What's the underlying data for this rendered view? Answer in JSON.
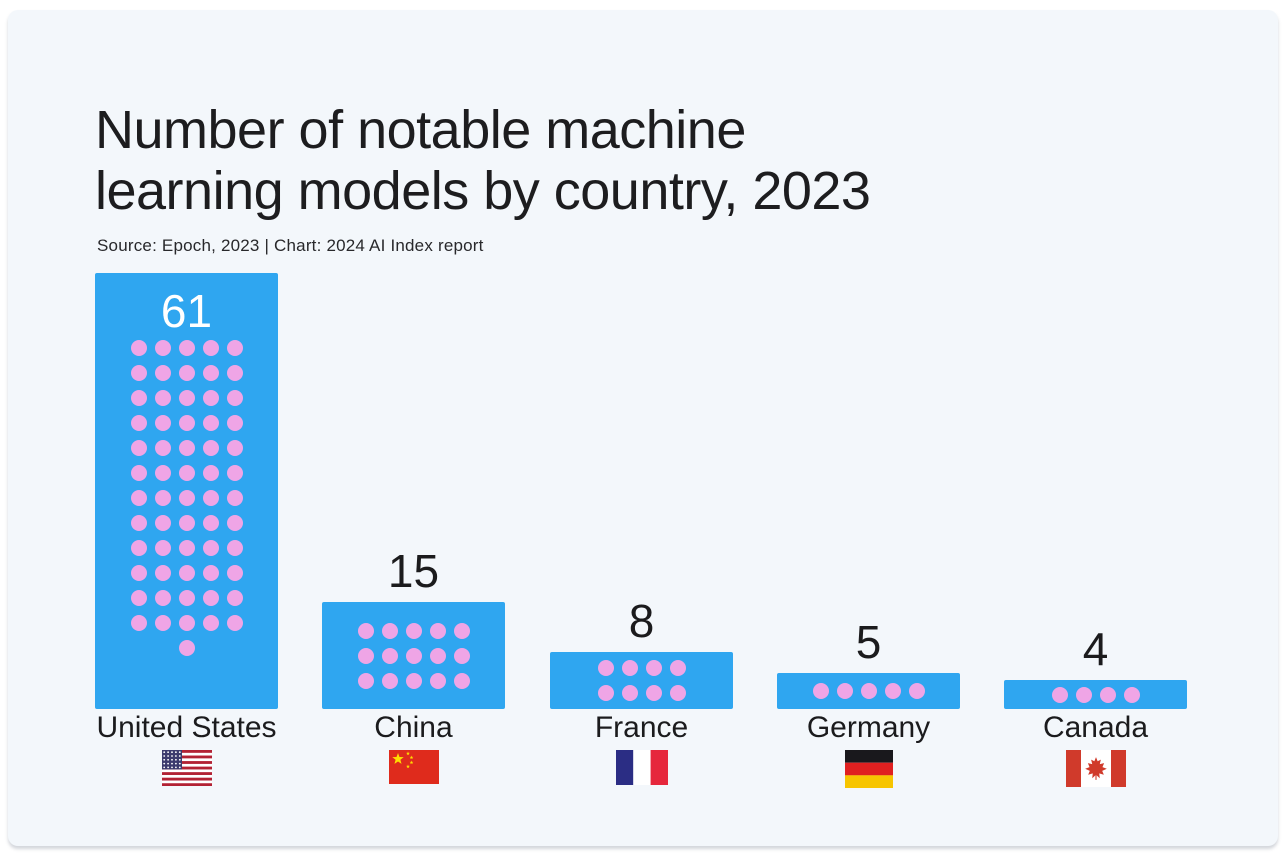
{
  "page": {
    "background": "#ffffff",
    "canvas_background": "#f3f7fb"
  },
  "header": {
    "title_line1": "Number of notable machine",
    "title_line2": "learning models by country, 2023",
    "source": "Source: Epoch, 2023 | Chart: 2024 AI Index report"
  },
  "chart_data": {
    "type": "bar",
    "title": "Number of notable machine learning models by country, 2023",
    "source": "Source: Epoch, 2023 | Chart: 2024 AI Index report",
    "categories": [
      "United States",
      "China",
      "France",
      "Germany",
      "Canada"
    ],
    "values": [
      61,
      15,
      8,
      5,
      4
    ],
    "value_labels": [
      "61",
      "15",
      "8",
      "5",
      "4"
    ],
    "value_label_inside_bar": [
      true,
      false,
      false,
      false,
      false
    ],
    "dots_per_row": [
      5,
      5,
      4,
      5,
      4
    ],
    "flag_icons": [
      "us-flag-icon",
      "china-flag-icon",
      "france-flag-icon",
      "germany-flag-icon",
      "canada-flag-icon"
    ],
    "bar_color": "#2fa6f0",
    "dot_color": "#efa5e6",
    "value_label_color_inside": "#ffffff",
    "text_color": "#1b1b1d",
    "orientation": "vertical",
    "axes_visible": false,
    "gridlines": false,
    "legend": null,
    "ylim": [
      0,
      61
    ]
  }
}
